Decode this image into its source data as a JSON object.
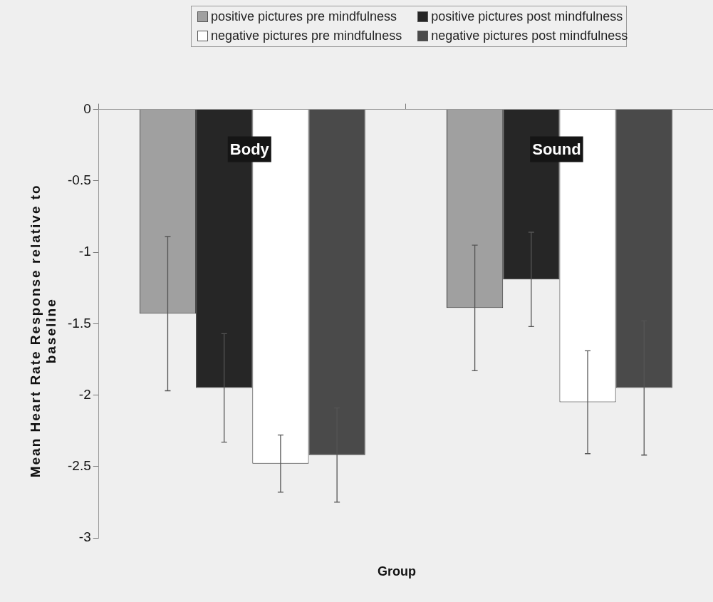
{
  "chart_data": {
    "type": "bar",
    "categories": [
      null,
      null
    ],
    "xlabel": "Group",
    "ylabel": "Mean Heart Rate Response relative to baseline",
    "annotations": [
      "Body",
      "Sound"
    ],
    "ylim": [
      -3,
      0
    ],
    "yticks": [
      -3,
      -2.5,
      -2,
      -1.5,
      -1,
      -0.5,
      0
    ],
    "grid": false,
    "legend": "top",
    "series": [
      {
        "name": "positive pictures pre mindfulness",
        "color": "#a0a0a0",
        "values": [
          -1.43,
          -1.39
        ],
        "errors": [
          0.54,
          0.44
        ]
      },
      {
        "name": "positive pictures post mindfulness",
        "color": "#262626",
        "values": [
          -1.95,
          -1.19
        ],
        "errors": [
          0.38,
          0.33
        ]
      },
      {
        "name": "negative pictures pre mindfulness",
        "color": "#ffffff",
        "values": [
          -2.48,
          -2.05
        ],
        "errors": [
          0.2,
          0.36
        ]
      },
      {
        "name": "negative pictures post mindfulness",
        "color": "#4a4a4a",
        "values": [
          -2.42,
          -1.95
        ],
        "errors": [
          0.33,
          0.47
        ]
      }
    ]
  }
}
